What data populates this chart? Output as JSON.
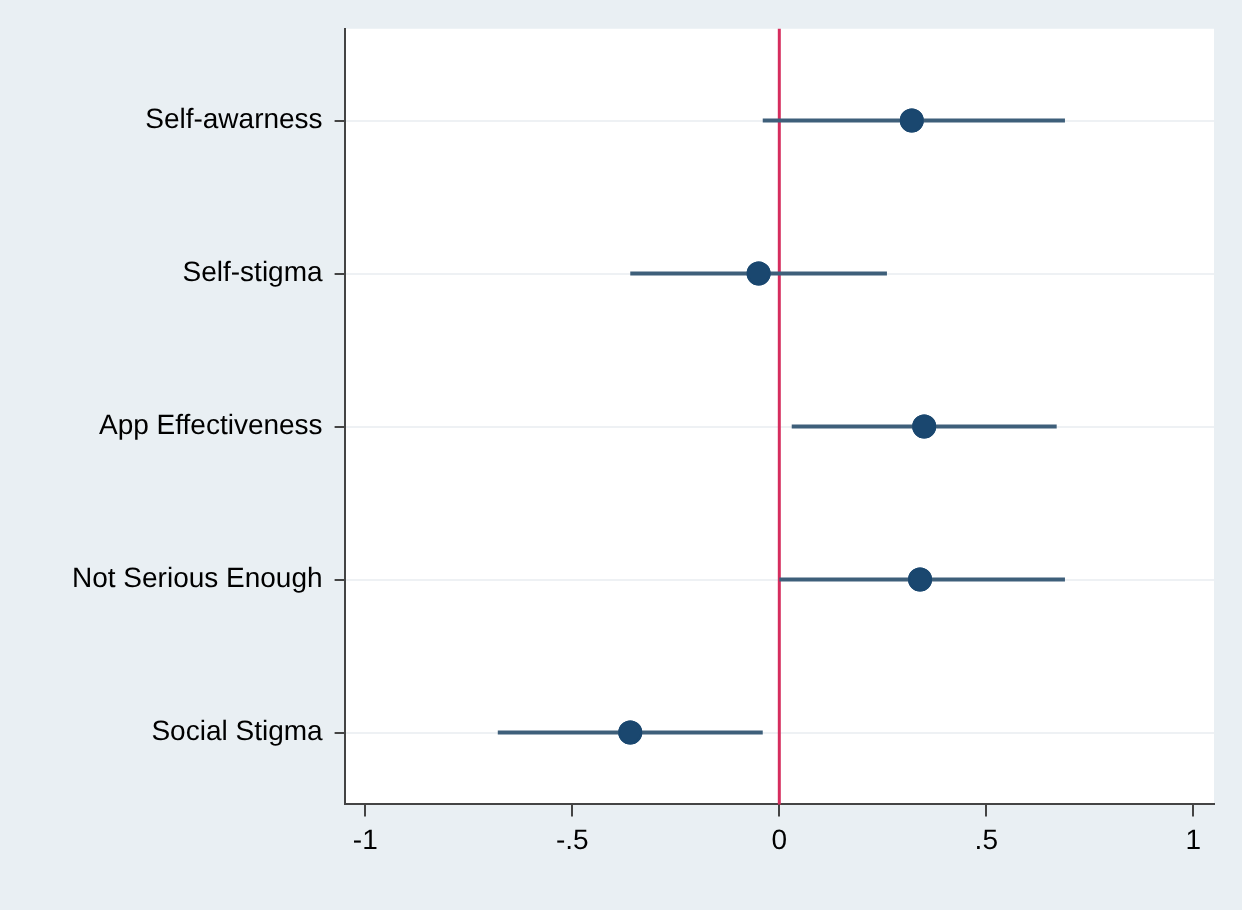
{
  "chart_data": {
    "type": "scatter",
    "categories": [
      "Self-awarness",
      "Self-stigma",
      "App Effectiveness",
      "Not Serious Enough",
      "Social Stigma"
    ],
    "orientation": "horizontal",
    "series": [
      {
        "color": "#1a476f",
        "values": [
          0.32,
          -0.05,
          0.35,
          0.34,
          -0.36
        ],
        "errors": [
          [
            -0.04,
            0.69
          ],
          [
            -0.36,
            0.26
          ],
          [
            0.03,
            0.67
          ],
          [
            0.0,
            0.69
          ],
          [
            -0.68,
            -0.04
          ]
        ]
      }
    ],
    "xlim": [
      -1.05,
      1.05
    ],
    "xticks": [
      {
        "value": -1,
        "label": "-1"
      },
      {
        "value": -0.5,
        "label": "-.5"
      },
      0,
      {
        "value": 0.5,
        "label": ".5"
      },
      1
    ],
    "ref_lines": [
      {
        "axis": "x",
        "value": 0,
        "color": "#d62d5e"
      }
    ],
    "grid": "y",
    "legend": false,
    "marker": "circle"
  }
}
